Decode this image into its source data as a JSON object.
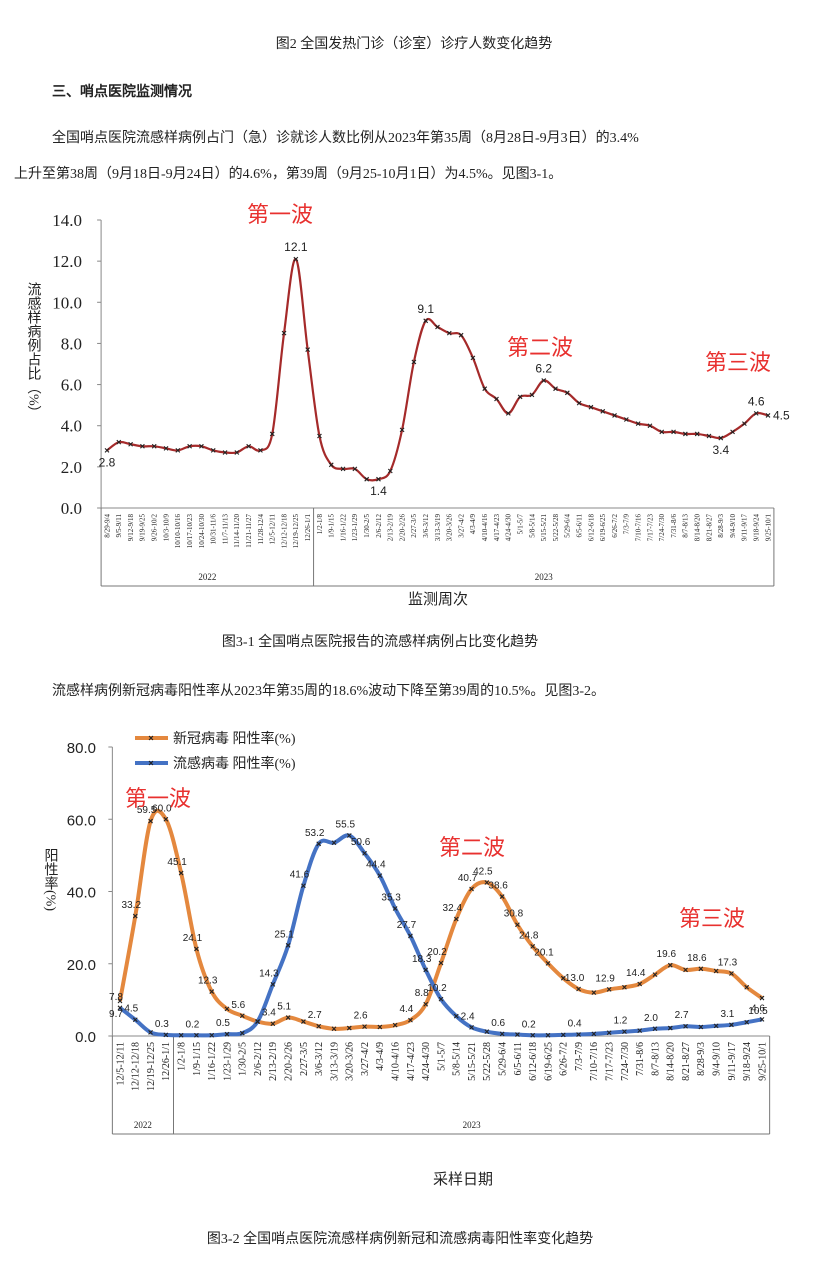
{
  "header": {
    "caption": "图2 全国发热门诊（诊室）诊疗人数变化趋势",
    "heading": "三、哨点医院监测情况"
  },
  "paragraphs": [
    [
      "全国哨点医院流感样病例占门（急）诊就诊人数比例从2023年第35周（8月28日-9月3日）的3.4%",
      "上升至第38周（9月18日-9月24日）的4.6%，第39周（9月25-10月1日）为4.5%。见图3-1。"
    ],
    [
      "流感样病例新冠病毒阳性率从2023年第35周的18.6%波动下降至第39周的10.5%。见图3-2。"
    ]
  ],
  "chart_data": [
    {
      "type": "line",
      "caption": "图3-1  全国哨点医院报告的流感样病例占比变化趋势",
      "y_label": "流感样病例占比（%）",
      "x_label": "监测周次",
      "x_groups": [
        "2022",
        "2023"
      ],
      "annotations": [
        "第一波",
        "第二波",
        "第三波"
      ],
      "color": "#a52a2a",
      "categories": [
        "8/29-9/4",
        "9/5-9/11",
        "9/12-9/18",
        "9/19-9/25",
        "9/26-10/2",
        "10/3-10/9",
        "10/10-10/16",
        "10/17-10/23",
        "10/24-10/30",
        "10/31-11/6",
        "11/7-11/13",
        "11/14-11/20",
        "11/21-11/27",
        "11/28-12/4",
        "12/5-12/11",
        "12/12-12/18",
        "12/19-12/25",
        "12/26-1/1",
        "1/2-1/8",
        "1/9-1/15",
        "1/16-1/22",
        "1/23-1/29",
        "1/30-2/5",
        "2/6-2/12",
        "2/13-2/19",
        "2/20-2/26",
        "2/27-3/5",
        "3/6-3/12",
        "3/13-3/19",
        "3/20-3/26",
        "3/27-4/2",
        "4/3-4/9",
        "4/10-4/16",
        "4/17-4/23",
        "4/24-4/30",
        "5/1-5/7",
        "5/8-5/14",
        "5/15-5/21",
        "5/22-5/28",
        "5/29-6/4",
        "6/5-6/11",
        "6/12-6/18",
        "6/19-6/25",
        "6/26-7/2",
        "7/3-7/9",
        "7/10-7/16",
        "7/17-7/23",
        "7/24-7/30",
        "7/31-8/6",
        "8/7-8/13",
        "8/14-8/20",
        "8/21-8/27",
        "8/28-9/3",
        "9/4-9/10",
        "9/11-9/17",
        "9/18-9/24",
        "9/25-10/1"
      ],
      "values": [
        2.8,
        3.2,
        3.1,
        3.0,
        3.0,
        2.9,
        2.8,
        3.0,
        3.0,
        2.8,
        2.7,
        2.7,
        3.0,
        2.8,
        3.6,
        8.5,
        12.1,
        7.7,
        3.5,
        2.1,
        1.9,
        1.9,
        1.4,
        1.4,
        1.8,
        3.8,
        7.1,
        9.1,
        8.8,
        8.5,
        8.4,
        7.3,
        5.8,
        5.3,
        4.6,
        5.4,
        5.5,
        6.2,
        5.8,
        5.6,
        5.1,
        4.9,
        4.7,
        4.5,
        4.3,
        4.1,
        4.0,
        3.7,
        3.7,
        3.6,
        3.6,
        3.5,
        3.4,
        3.7,
        4.1,
        4.6,
        4.5
      ],
      "value_labels": [
        "2.8",
        null,
        null,
        null,
        null,
        null,
        null,
        null,
        null,
        null,
        null,
        null,
        null,
        null,
        null,
        null,
        "12.1",
        null,
        null,
        null,
        null,
        null,
        null,
        "1.4",
        null,
        null,
        null,
        "9.1",
        null,
        null,
        null,
        null,
        null,
        null,
        null,
        null,
        null,
        "6.2",
        null,
        null,
        null,
        null,
        null,
        null,
        null,
        null,
        null,
        null,
        null,
        null,
        null,
        null,
        "3.4",
        null,
        null,
        "4.6",
        "4.5"
      ],
      "ylim": [
        0,
        14
      ],
      "yticks": [
        {
          "value": 0,
          "label": "0.0"
        },
        {
          "value": 2,
          "label": "2.0"
        },
        {
          "value": 4,
          "label": "4.0"
        },
        {
          "value": 6,
          "label": "6.0"
        },
        {
          "value": 8,
          "label": "8.0"
        },
        {
          "value": 10,
          "label": "10.0"
        },
        {
          "value": 12,
          "label": "12.0"
        },
        {
          "value": 14,
          "label": "14.0"
        }
      ]
    },
    {
      "type": "line",
      "caption": "图3-2 全国哨点医院流感样病例新冠和流感病毒阳性率变化趋势",
      "y_label": "阳性率(%)",
      "x_label": "采样日期",
      "x_groups": [
        "2022",
        "2023"
      ],
      "annotations": [
        "第一波",
        "第二波",
        "第三波"
      ],
      "categories": [
        "12/5-12/11",
        "12/12-12/18",
        "12/19-12/25",
        "12/26-1/1",
        "1/2-1/8",
        "1/9-1/15",
        "1/16-1/22",
        "1/23-1/29",
        "1/30-2/5",
        "2/6-2/12",
        "2/13-2/19",
        "2/20-2/26",
        "2/27-3/5",
        "3/6-3/12",
        "3/13-3/19",
        "3/20-3/26",
        "3/27-4/2",
        "4/3-4/9",
        "4/10-4/16",
        "4/17-4/23",
        "4/24-4/30",
        "5/1-5/7",
        "5/8-5/14",
        "5/15-5/21",
        "5/22-5/28",
        "5/29-6/4",
        "6/5-6/11",
        "6/12-6/18",
        "6/19-6/25",
        "6/26-7/2",
        "7/3-7/9",
        "7/10-7/16",
        "7/17-7/23",
        "7/24-7/30",
        "7/31-8/6",
        "8/7-8/13",
        "8/14-8/20",
        "8/21-8/27",
        "8/28-9/3",
        "9/4-9/10",
        "9/11-9/17",
        "9/18-9/24",
        "9/25-10/1"
      ],
      "series": [
        {
          "name": "新冠病毒 阳性率(%)",
          "color": "#e4883e",
          "values": [
            9.7,
            33.2,
            59.5,
            60.0,
            45.1,
            24.1,
            12.3,
            7.5,
            5.6,
            4.0,
            3.4,
            5.1,
            4.0,
            2.7,
            2.0,
            2.2,
            2.6,
            2.5,
            3.0,
            4.4,
            8.8,
            20.2,
            32.4,
            40.7,
            42.5,
            38.6,
            30.8,
            24.8,
            20.1,
            16.0,
            13.0,
            12.0,
            12.9,
            13.5,
            14.4,
            17.0,
            19.6,
            18.3,
            18.6,
            18.0,
            17.3,
            13.5,
            10.5
          ],
          "value_labels": [
            "9.7",
            "33.2",
            "59.5",
            "60.0",
            "45.1",
            "24.1",
            "12.3",
            null,
            "5.6",
            null,
            "3.4",
            "5.1",
            null,
            "2.7",
            null,
            null,
            "2.6",
            null,
            null,
            "4.4",
            "8.8",
            "20.2",
            "32.4",
            "40.7",
            "42.5",
            "38.6",
            "30.8",
            "24.8",
            "20.1",
            null,
            "13.0",
            null,
            "12.9",
            null,
            "14.4",
            null,
            "19.6",
            null,
            "18.6",
            null,
            "17.3",
            null,
            "10.5"
          ]
        },
        {
          "name": "流感病毒 阳性率(%)",
          "color": "#4472c4",
          "values": [
            7.8,
            4.5,
            1.0,
            0.3,
            0.2,
            0.2,
            0.2,
            0.5,
            0.8,
            4.0,
            14.3,
            25.1,
            41.6,
            53.2,
            53.5,
            55.5,
            50.6,
            44.4,
            35.3,
            27.7,
            18.3,
            10.2,
            5.5,
            2.4,
            1.2,
            0.6,
            0.4,
            0.2,
            0.2,
            0.3,
            0.4,
            0.6,
            0.9,
            1.2,
            1.5,
            2.0,
            2.2,
            2.7,
            2.5,
            2.8,
            3.1,
            3.8,
            4.6
          ],
          "value_labels": [
            "7.8",
            "4.5",
            null,
            "0.3",
            null,
            "0.2",
            null,
            "0.5",
            null,
            null,
            "14.3",
            "25.1",
            "41.6",
            "53.2",
            null,
            "55.5",
            "50.6",
            "44.4",
            "35.3",
            "27.7",
            "18.3",
            "10.2",
            null,
            "2.4",
            null,
            "0.6",
            null,
            "0.2",
            null,
            null,
            "0.4",
            null,
            null,
            "1.2",
            null,
            "2.0",
            null,
            "2.7",
            null,
            null,
            "3.1",
            null,
            "4.6"
          ]
        }
      ],
      "ylim": [
        0,
        80
      ],
      "yticks": [
        {
          "value": 0,
          "label": "0.0"
        },
        {
          "value": 20,
          "label": "20.0"
        },
        {
          "value": 40,
          "label": "40.0"
        },
        {
          "value": 60,
          "label": "60.0"
        },
        {
          "value": 80,
          "label": "80.0"
        }
      ],
      "legend": "top-left"
    }
  ]
}
